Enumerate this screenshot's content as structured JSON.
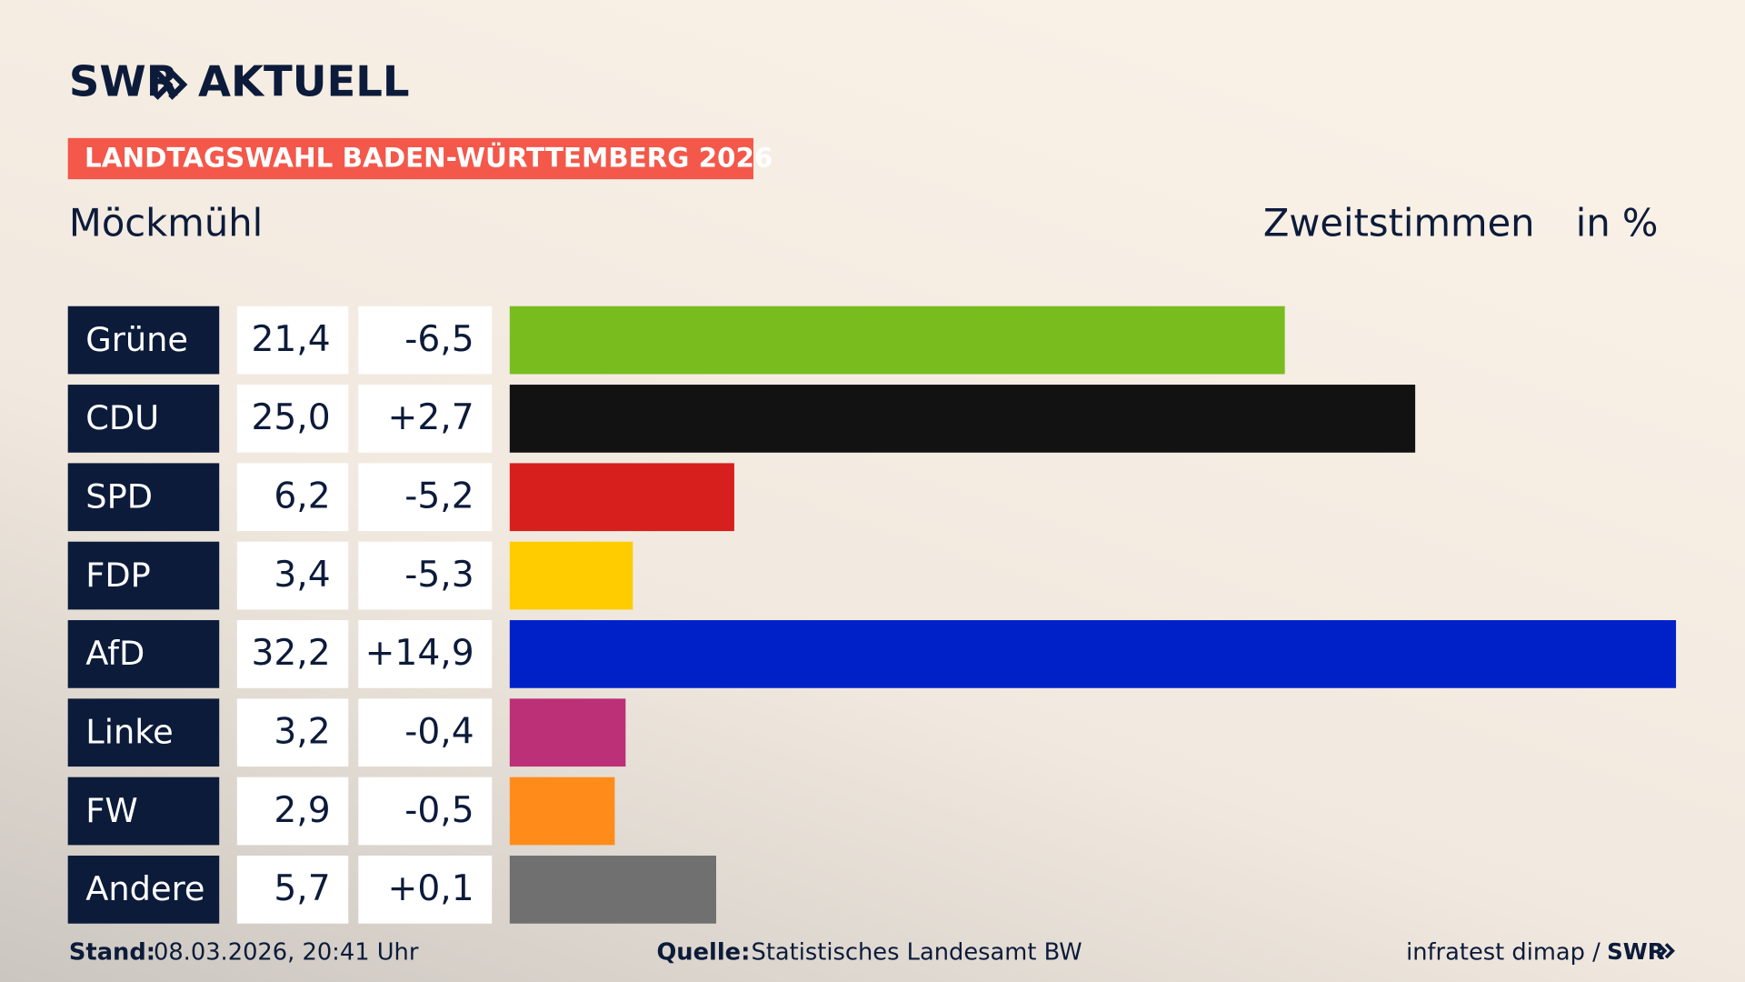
{
  "header": {
    "logo": "SWR",
    "logo_suffix": "AKTUELL",
    "badge": "LANDTAGSWAHL BADEN-WÜRTTEMBERG 2026"
  },
  "chart_data": {
    "type": "bar",
    "title": "Möckmühl",
    "subtitle": "Zweitstimmen",
    "unit": "in %",
    "categories": [
      "Grüne",
      "CDU",
      "SPD",
      "FDP",
      "AfD",
      "Linke",
      "FW",
      "Andere"
    ],
    "values": [
      21.4,
      25.0,
      6.2,
      3.4,
      32.2,
      3.2,
      2.9,
      5.7
    ],
    "value_labels": [
      "21,4",
      "25,0",
      "6,2",
      "3,4",
      "32,2",
      "3,2",
      "2,9",
      "5,7"
    ],
    "changes": [
      -6.5,
      2.7,
      -5.2,
      -5.3,
      14.9,
      -0.4,
      -0.5,
      0.1
    ],
    "change_labels": [
      "-6,5",
      "+2,7",
      "-5,2",
      "-5,3",
      "+14,9",
      "-0,4",
      "-0,5",
      "+0,1"
    ],
    "colors": [
      "#78bc1e",
      "#121212",
      "#d71f1d",
      "#ffcc00",
      "#0021c8",
      "#bb3077",
      "#ff8c1a",
      "#707070"
    ]
  },
  "footer": {
    "stand_label": "Stand:",
    "stand": "08.03.2026, 20:41 Uhr",
    "source_label": "Quelle:",
    "source": "Statistisches Landesamt BW",
    "credit": "infratest dimap /",
    "credit_logo": "SWR"
  }
}
